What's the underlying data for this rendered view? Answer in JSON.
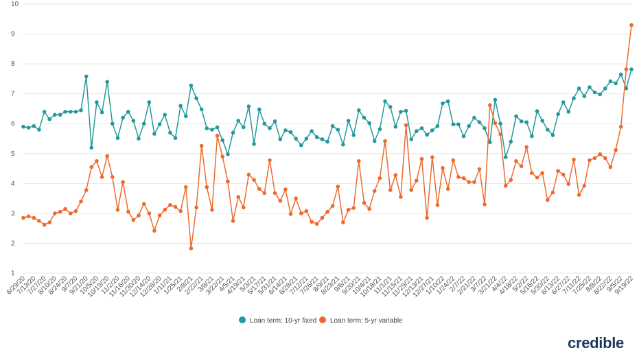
{
  "chart_data": {
    "type": "line",
    "title": "",
    "xlabel": "",
    "ylabel": "",
    "ylim": [
      1,
      10
    ],
    "yticks": [
      1,
      2,
      3,
      4,
      5,
      6,
      7,
      8,
      9,
      10
    ],
    "grid": true,
    "legend_position": "bottom-center",
    "x_tick_labels": [
      "6/29/20",
      "7/13/20",
      "7/27/20",
      "8/10/20",
      "8/24/20",
      "9/7/20",
      "9/21/20",
      "10/5/20",
      "10/19/20",
      "11/2/20",
      "11/16/20",
      "11/30/20",
      "12/14/20",
      "12/28/20",
      "1/11/21",
      "1/25/21",
      "2/8/21",
      "2/22/21",
      "3/8/21",
      "3/22/21",
      "4/5/21",
      "4/19/21",
      "5/3/21",
      "5/17/21",
      "5/31/21",
      "6/14/21",
      "6/28/21",
      "7/12/21",
      "7/26/21",
      "8/9/21",
      "8/23/21",
      "9/6/21",
      "9/20/21",
      "10/4/21",
      "10/18/21",
      "11/1/21",
      "11/15/21",
      "11/29/21",
      "12/13/21",
      "12/27/21",
      "1/10/22",
      "1/24/22",
      "2/7/22",
      "2/21/22",
      "3/7/22",
      "3/21/22",
      "4/4/22",
      "4/18/22",
      "5/2/22",
      "5/16/22",
      "5/30/22",
      "6/13/22",
      "6/27/22",
      "7/11/22",
      "7/25/22",
      "8/8/22",
      "8/22/22",
      "9/5/22",
      "9/19/22"
    ],
    "series": [
      {
        "name": "Loan term: 10-yr fixed",
        "color": "#23999b",
        "values": [
          5.9,
          5.87,
          5.92,
          5.8,
          6.4,
          6.15,
          6.3,
          6.3,
          6.4,
          6.4,
          6.4,
          6.45,
          7.58,
          5.2,
          6.72,
          6.38,
          7.4,
          6.0,
          5.52,
          6.2,
          6.4,
          6.1,
          5.5,
          6.0,
          6.72,
          5.66,
          5.98,
          6.3,
          5.7,
          5.52,
          6.6,
          6.25,
          7.28,
          6.85,
          6.48,
          5.85,
          5.8,
          5.88,
          5.45,
          4.98,
          5.7,
          6.1,
          5.88,
          6.58,
          5.32,
          6.48,
          6.0,
          5.85,
          6.08,
          5.48,
          5.78,
          5.72,
          5.5,
          5.28,
          5.5,
          5.75,
          5.55,
          5.48,
          5.4,
          5.92,
          5.8,
          5.3,
          6.1,
          5.62,
          6.45,
          6.2,
          6.02,
          5.42,
          5.82,
          6.75,
          6.56,
          5.9,
          6.4,
          6.43,
          5.48,
          5.75,
          5.85,
          5.63,
          5.78,
          5.92,
          6.68,
          6.75,
          5.98,
          5.98,
          5.58,
          5.92,
          6.2,
          6.05,
          5.85,
          5.38,
          6.8,
          6.0,
          4.88,
          5.4,
          6.25,
          6.08,
          6.05,
          5.58,
          6.42,
          6.1,
          5.8,
          5.62,
          6.32,
          6.72,
          6.4,
          6.85,
          7.18,
          6.92,
          7.22,
          7.05,
          6.98,
          7.18,
          7.42,
          7.35,
          7.65,
          7.18,
          7.82
        ]
      },
      {
        "name": "Loan term: 5-yr variable",
        "color": "#ed6a2d",
        "values": [
          2.85,
          2.9,
          2.85,
          2.75,
          2.62,
          2.7,
          3.0,
          3.05,
          3.15,
          3.0,
          3.08,
          3.4,
          3.78,
          4.55,
          4.75,
          4.22,
          4.92,
          4.22,
          3.12,
          4.05,
          3.06,
          2.78,
          2.93,
          3.32,
          3.0,
          2.42,
          2.93,
          3.12,
          3.28,
          3.22,
          3.08,
          3.88,
          1.83,
          3.2,
          5.26,
          3.88,
          3.12,
          5.6,
          4.9,
          4.07,
          2.75,
          3.55,
          3.2,
          4.3,
          4.12,
          3.82,
          3.68,
          4.78,
          3.68,
          3.42,
          3.8,
          2.98,
          3.5,
          3.0,
          3.08,
          2.72,
          2.65,
          2.85,
          3.05,
          3.25,
          3.9,
          2.7,
          3.12,
          3.18,
          4.75,
          3.35,
          3.15,
          3.75,
          4.18,
          5.42,
          3.78,
          4.28,
          3.55,
          5.95,
          3.78,
          4.1,
          4.82,
          2.85,
          4.88,
          3.28,
          4.52,
          3.82,
          4.78,
          4.22,
          4.18,
          4.05,
          4.05,
          4.48,
          3.3,
          6.62,
          6.02,
          5.65,
          3.92,
          4.12,
          4.75,
          4.58,
          5.22,
          4.35,
          4.2,
          4.35,
          3.45,
          3.7,
          4.42,
          4.3,
          3.98,
          4.8,
          3.62,
          3.92,
          4.78,
          4.85,
          4.98,
          4.85,
          4.55,
          5.12,
          5.9,
          7.82,
          9.3
        ]
      }
    ]
  },
  "legend": {
    "items": [
      "Loan term: 10-yr fixed",
      "Loan term: 5-yr variable"
    ]
  },
  "logo_text": "credible"
}
